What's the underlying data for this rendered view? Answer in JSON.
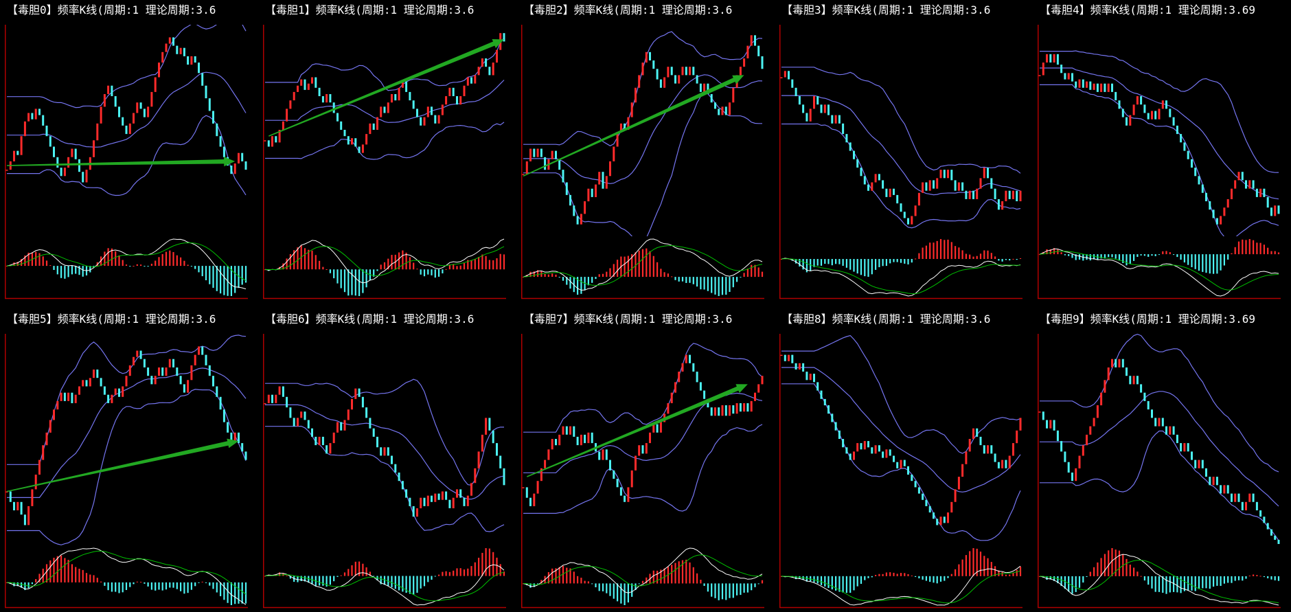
{
  "colors": {
    "background": "#000000",
    "title": "#ffffff",
    "up": "#ff2b2b",
    "down": "#4cf3f3",
    "boll": "#7575f0",
    "dif": "#ffffff",
    "dea": "#00c000",
    "arrow": "#22a822",
    "axis": "#b00000"
  },
  "chart_data": [
    {
      "type": "bar",
      "title": "【毒胆0】频率K线(周期:1 理论周期:3.6",
      "ylim": [
        0,
        100
      ],
      "grid": false,
      "values": [
        31,
        35,
        40,
        38,
        47,
        54,
        58,
        55,
        60,
        57,
        52,
        47,
        42,
        37,
        32,
        28,
        32,
        37,
        41,
        36,
        30,
        25,
        31,
        37,
        45,
        53,
        61,
        67,
        71,
        66,
        61,
        56,
        52,
        48,
        53,
        58,
        63,
        60,
        56,
        61,
        68,
        75,
        82,
        87,
        91,
        94,
        90,
        86,
        89,
        85,
        81,
        85,
        82,
        77,
        71,
        65,
        59,
        53,
        47,
        42,
        37,
        33,
        29,
        34,
        39,
        35,
        31
      ],
      "arrow": {
        "from": [
          0,
          33
        ],
        "to": [
          63,
          35
        ]
      }
    },
    {
      "type": "bar",
      "title": "【毒胆1】频率K线(周期:1 理论周期:3.6",
      "ylim": [
        0,
        100
      ],
      "grid": false,
      "values": [
        45,
        42,
        47,
        44,
        50,
        54,
        60,
        64,
        68,
        71,
        74,
        69,
        72,
        75,
        70,
        66,
        63,
        67,
        63,
        58,
        54,
        50,
        47,
        43,
        46,
        42,
        39,
        43,
        48,
        53,
        50,
        56,
        61,
        58,
        63,
        67,
        64,
        70,
        73,
        68,
        64,
        60,
        56,
        52,
        56,
        61,
        57,
        53,
        57,
        62,
        66,
        70,
        66,
        62,
        66,
        71,
        75,
        72,
        76,
        80,
        84,
        80,
        76,
        82,
        88,
        96,
        92
      ],
      "arrow": {
        "from": [
          1,
          47
        ],
        "to": [
          66,
          93
        ]
      }
    },
    {
      "type": "bar",
      "title": "【毒胆2】频率K线(周期:1 理论周期:3.6",
      "ylim": [
        0,
        100
      ],
      "grid": false,
      "values": [
        29,
        35,
        41,
        37,
        41,
        37,
        31,
        36,
        40,
        36,
        31,
        25,
        19,
        14,
        9,
        5,
        10,
        16,
        22,
        18,
        24,
        30,
        22,
        28,
        35,
        42,
        49,
        53,
        50,
        56,
        63,
        70,
        76,
        82,
        87,
        83,
        79,
        74,
        70,
        75,
        80,
        76,
        72,
        76,
        80,
        76,
        80,
        76,
        72,
        68,
        72,
        67,
        63,
        60,
        57,
        61,
        57,
        63,
        70,
        76,
        80,
        84,
        90,
        95,
        90,
        85,
        79
      ],
      "arrow": {
        "from": [
          0,
          28
        ],
        "to": [
          61,
          76
        ]
      }
    },
    {
      "type": "bar",
      "title": "【毒胆3】频率K线(周期:1 理论周期:3.6",
      "ylim": [
        0,
        100
      ],
      "grid": false,
      "values": [
        75,
        78,
        74,
        70,
        66,
        62,
        58,
        54,
        60,
        66,
        62,
        58,
        62,
        57,
        53,
        57,
        53,
        48,
        44,
        40,
        36,
        32,
        28,
        24,
        21,
        25,
        29,
        26,
        22,
        18,
        22,
        19,
        15,
        11,
        8,
        5,
        9,
        14,
        20,
        25,
        21,
        26,
        22,
        27,
        31,
        27,
        31,
        26,
        21,
        25,
        21,
        17,
        21,
        17,
        22,
        27,
        32,
        27,
        22,
        17,
        12,
        16,
        21,
        17,
        21,
        16,
        21
      ]
    },
    {
      "type": "bar",
      "title": "【毒胆4】频率K线(周期:1 理论周期:3.69",
      "ylim": [
        0,
        100
      ],
      "grid": false,
      "values": [
        76,
        82,
        86,
        82,
        86,
        81,
        77,
        74,
        77,
        73,
        70,
        74,
        70,
        73,
        69,
        72,
        68,
        72,
        68,
        72,
        68,
        64,
        60,
        56,
        52,
        57,
        62,
        66,
        62,
        58,
        55,
        59,
        55,
        60,
        64,
        60,
        56,
        52,
        48,
        44,
        40,
        36,
        32,
        28,
        24,
        20,
        16,
        12,
        8,
        5,
        9,
        13,
        17,
        22,
        26,
        30,
        26,
        22,
        26,
        22,
        18,
        22,
        18,
        13,
        9,
        14,
        10
      ]
    },
    {
      "type": "bar",
      "title": "【毒胆5】频率K线(周期:1 理论周期:3.6",
      "ylim": [
        0,
        100
      ],
      "grid": false,
      "values": [
        25,
        20,
        16,
        20,
        14,
        9,
        18,
        26,
        33,
        40,
        47,
        53,
        59,
        64,
        68,
        72,
        68,
        72,
        67,
        71,
        75,
        78,
        75,
        79,
        83,
        79,
        75,
        71,
        67,
        71,
        74,
        70,
        75,
        80,
        85,
        89,
        92,
        88,
        84,
        80,
        76,
        80,
        84,
        80,
        84,
        88,
        84,
        80,
        76,
        72,
        78,
        85,
        90,
        94,
        90,
        85,
        80,
        75,
        70,
        64,
        58,
        53,
        49,
        53,
        48,
        44,
        40
      ],
      "arrow": {
        "from": [
          0,
          25
        ],
        "to": [
          64,
          49
        ]
      }
    },
    {
      "type": "bar",
      "title": "【毒胆6】频率K线(周期:1 理论周期:3.6",
      "ylim": [
        0,
        100
      ],
      "grid": false,
      "values": [
        67,
        71,
        67,
        71,
        75,
        70,
        65,
        60,
        56,
        60,
        63,
        59,
        55,
        51,
        47,
        51,
        47,
        43,
        48,
        53,
        58,
        54,
        59,
        64,
        69,
        74,
        70,
        65,
        60,
        55,
        51,
        46,
        42,
        46,
        42,
        38,
        34,
        30,
        26,
        22,
        18,
        13,
        17,
        22,
        18,
        23,
        20,
        24,
        21,
        25,
        21,
        17,
        22,
        26,
        22,
        18,
        23,
        29,
        36,
        44,
        52,
        60,
        54,
        48,
        42,
        36,
        28
      ]
    },
    {
      "type": "bar",
      "title": "【毒胆7】频率K线(周期:1 理论周期:3.6",
      "ylim": [
        0,
        100
      ],
      "grid": false,
      "values": [
        27,
        22,
        18,
        24,
        30,
        36,
        40,
        45,
        50,
        47,
        52,
        56,
        52,
        56,
        51,
        47,
        52,
        48,
        53,
        48,
        44,
        40,
        45,
        40,
        35,
        31,
        27,
        23,
        20,
        27,
        35,
        42,
        47,
        43,
        48,
        53,
        57,
        53,
        58,
        62,
        67,
        72,
        77,
        82,
        86,
        90,
        86,
        82,
        77,
        73,
        69,
        65,
        61,
        65,
        61,
        66,
        61,
        66,
        62,
        67,
        63,
        67,
        63,
        68,
        72,
        76,
        80
      ],
      "arrow": {
        "from": [
          1,
          32
        ],
        "to": [
          62,
          76
        ]
      }
    },
    {
      "type": "bar",
      "title": "【毒胆8】频率K线(周期:1 理论周期:3.6",
      "ylim": [
        0,
        100
      ],
      "grid": false,
      "values": [
        90,
        87,
        90,
        86,
        83,
        86,
        82,
        78,
        81,
        77,
        73,
        69,
        66,
        62,
        58,
        54,
        50,
        46,
        43,
        40,
        44,
        48,
        45,
        49,
        46,
        43,
        47,
        44,
        41,
        45,
        42,
        39,
        36,
        40,
        37,
        33,
        30,
        27,
        24,
        21,
        18,
        15,
        12,
        9,
        13,
        10,
        15,
        20,
        26,
        32,
        38,
        44,
        50,
        55,
        51,
        47,
        43,
        47,
        43,
        39,
        36,
        40,
        36,
        42,
        48,
        54,
        60
      ]
    },
    {
      "type": "bar",
      "title": "【毒胆9】频率K线(周期:1 理论周期:3.69",
      "ylim": [
        0,
        100
      ],
      "grid": false,
      "values": [
        63,
        59,
        55,
        59,
        54,
        49,
        44,
        39,
        34,
        30,
        36,
        42,
        47,
        52,
        56,
        60,
        66,
        72,
        78,
        84,
        88,
        84,
        88,
        84,
        80,
        76,
        80,
        76,
        72,
        68,
        64,
        60,
        56,
        60,
        56,
        52,
        56,
        52,
        48,
        44,
        48,
        44,
        40,
        36,
        40,
        36,
        32,
        28,
        32,
        28,
        24,
        28,
        24,
        20,
        24,
        20,
        16,
        20,
        24,
        20,
        16,
        13,
        10,
        7,
        4,
        2,
        0
      ]
    }
  ]
}
